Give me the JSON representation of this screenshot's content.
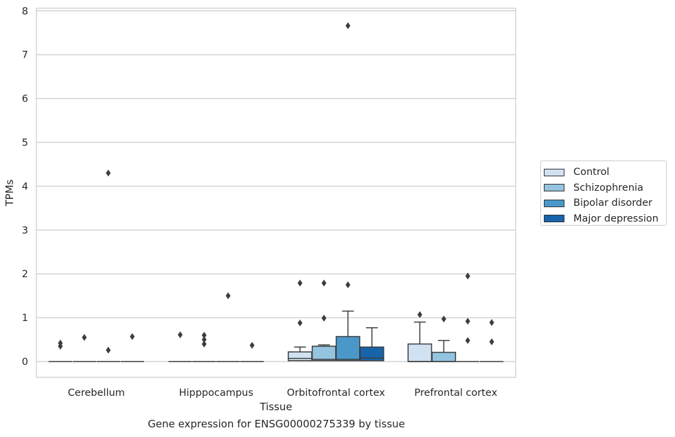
{
  "chart_data": {
    "type": "box",
    "xlabel": "Tissue",
    "ylabel": "TPMs",
    "ylim": [
      -0.37,
      8.05
    ],
    "yticks": [
      0,
      1,
      2,
      3,
      4,
      5,
      6,
      7,
      8
    ],
    "grid": true,
    "legend_position": "right",
    "categories": [
      "Cerebellum",
      "Hipppocampus",
      "Orbitofrontal cortex",
      "Prefrontal cortex"
    ],
    "series": [
      {
        "name": "Control",
        "color": "#d0e1f2",
        "boxes": [
          {
            "q1": 0,
            "median": 0,
            "q3": 0,
            "wlo": 0,
            "whi": 0,
            "outliers": [
              0.42,
              0.35
            ]
          },
          {
            "q1": 0,
            "median": 0,
            "q3": 0,
            "wlo": 0,
            "whi": 0,
            "outliers": [
              0.61
            ]
          },
          {
            "q1": 0.02,
            "median": 0.07,
            "q3": 0.22,
            "wlo": 0,
            "whi": 0.33,
            "outliers": [
              0.88,
              1.79
            ]
          },
          {
            "q1": 0,
            "median": 0,
            "q3": 0.4,
            "wlo": 0,
            "whi": 0.9,
            "outliers": [
              1.07
            ]
          }
        ]
      },
      {
        "name": "Schizophrenia",
        "color": "#94c4df",
        "boxes": [
          {
            "q1": 0,
            "median": 0,
            "q3": 0,
            "wlo": 0,
            "whi": 0,
            "outliers": [
              0.55
            ]
          },
          {
            "q1": 0,
            "median": 0,
            "q3": 0,
            "wlo": 0,
            "whi": 0,
            "outliers": [
              0.6,
              0.5,
              0.4
            ]
          },
          {
            "q1": 0.02,
            "median": 0.05,
            "q3": 0.35,
            "wlo": 0,
            "whi": 0.38,
            "outliers": [
              0.99,
              1.79
            ]
          },
          {
            "q1": 0,
            "median": 0,
            "q3": 0.21,
            "wlo": 0,
            "whi": 0.48,
            "outliers": [
              0.97
            ]
          }
        ]
      },
      {
        "name": "Bipolar disorder",
        "color": "#4a98c9",
        "boxes": [
          {
            "q1": 0,
            "median": 0,
            "q3": 0,
            "wlo": 0,
            "whi": 0,
            "outliers": [
              4.3,
              0.26
            ]
          },
          {
            "q1": 0,
            "median": 0,
            "q3": 0,
            "wlo": 0,
            "whi": 0,
            "outliers": [
              1.5
            ]
          },
          {
            "q1": 0.02,
            "median": 0.05,
            "q3": 0.57,
            "wlo": 0,
            "whi": 1.15,
            "outliers": [
              7.66,
              1.75
            ]
          },
          {
            "q1": 0,
            "median": 0,
            "q3": 0,
            "wlo": 0,
            "whi": 0,
            "outliers": [
              1.95,
              0.92,
              0.48
            ]
          }
        ]
      },
      {
        "name": "Major depression",
        "color": "#1764ab",
        "boxes": [
          {
            "q1": 0,
            "median": 0,
            "q3": 0,
            "wlo": 0,
            "whi": 0,
            "outliers": [
              0.57
            ]
          },
          {
            "q1": 0,
            "median": 0,
            "q3": 0,
            "wlo": 0,
            "whi": 0,
            "outliers": [
              0.37
            ]
          },
          {
            "q1": 0.02,
            "median": 0.08,
            "q3": 0.33,
            "wlo": 0,
            "whi": 0.77,
            "outliers": []
          },
          {
            "q1": 0,
            "median": 0,
            "q3": 0,
            "wlo": 0,
            "whi": 0,
            "outliers": [
              0.89,
              0.45
            ]
          }
        ]
      }
    ]
  },
  "caption": "Gene expression for ENSG00000275339 by tissue"
}
